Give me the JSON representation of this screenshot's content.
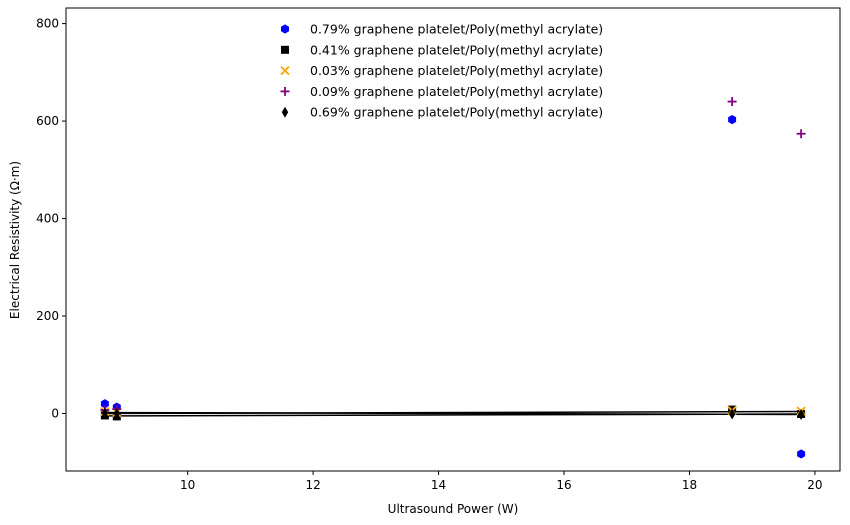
{
  "chart_data": {
    "type": "scatter",
    "title": "",
    "xlabel": "Ultrasound Power (W)",
    "ylabel": "Electrical Resistivity (Ω·m)",
    "xlim": [
      8.06,
      20.4
    ],
    "ylim": [
      -118,
      832
    ],
    "xticks": [
      10,
      12,
      14,
      16,
      18,
      20
    ],
    "yticks": [
      0,
      200,
      400,
      600,
      800
    ],
    "grid": false,
    "legend_position": "top-center",
    "series": [
      {
        "name": "0.79% graphene platelet/Poly(methyl acrylate)",
        "color": "#0000ff",
        "marker": "hexagon",
        "points": [
          [
            8.68,
            20
          ],
          [
            8.87,
            13
          ],
          [
            18.68,
            603
          ],
          [
            19.78,
            -83
          ]
        ]
      },
      {
        "name": "0.41% graphene platelet/Poly(methyl acrylate)",
        "color": "#000000",
        "marker": "square",
        "points": [
          [
            8.68,
            -4
          ],
          [
            8.87,
            -6
          ],
          [
            18.68,
            8
          ],
          [
            19.78,
            -1
          ]
        ]
      },
      {
        "name": "0.03% graphene platelet/Poly(methyl acrylate)",
        "color": "#ffa500",
        "marker": "x",
        "points": [
          [
            8.68,
            4
          ],
          [
            8.87,
            2
          ],
          [
            18.68,
            6
          ],
          [
            19.78,
            5
          ]
        ]
      },
      {
        "name": "0.09% graphene platelet/Poly(methyl acrylate)",
        "color": "#800080",
        "marker": "plus",
        "points": [
          [
            8.68,
            7
          ],
          [
            8.87,
            9
          ],
          [
            18.68,
            640
          ],
          [
            19.78,
            574
          ]
        ]
      },
      {
        "name": "0.69% graphene platelet/Poly(methyl acrylate)",
        "color": "#000000",
        "marker": "thin_diamond",
        "points": [
          [
            8.68,
            1
          ],
          [
            8.87,
            0
          ],
          [
            18.68,
            -1
          ],
          [
            19.78,
            -2
          ]
        ]
      }
    ],
    "trend_lines": [
      {
        "color": "#000000",
        "points": [
          [
            8.68,
            -5
          ],
          [
            19.78,
            -1
          ]
        ]
      },
      {
        "color": "#000000",
        "points": [
          [
            8.68,
            0
          ],
          [
            19.78,
            4
          ]
        ]
      },
      {
        "color": "#000000",
        "points": [
          [
            8.68,
            2
          ],
          [
            19.78,
            -2
          ]
        ]
      }
    ]
  }
}
